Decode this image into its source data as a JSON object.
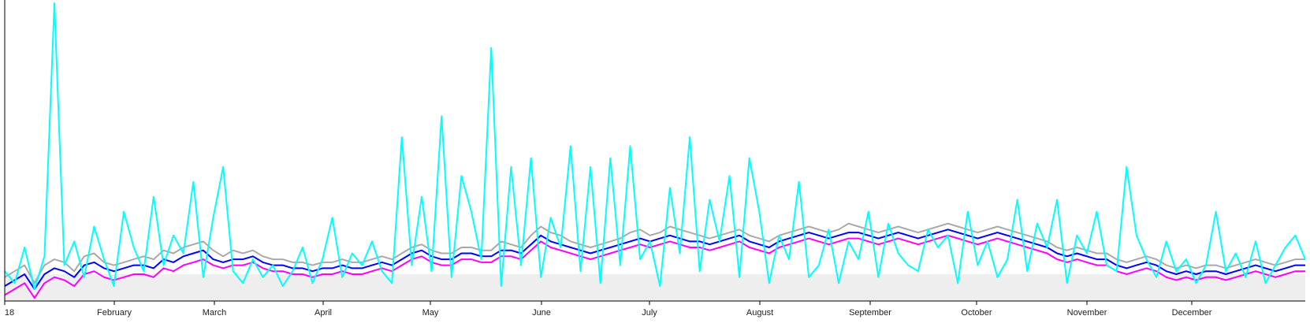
{
  "chart_data": {
    "type": "line",
    "title": "",
    "xlabel": "",
    "ylabel": "",
    "x_tick_labels": [
      "18",
      "February",
      "March",
      "April",
      "May",
      "June",
      "July",
      "August",
      "September",
      "October",
      "November",
      "December"
    ],
    "ylim": [
      0,
      100
    ],
    "grid": false,
    "legend": "none",
    "band": {
      "from": 0,
      "to": 9,
      "color": "#eeeeee"
    },
    "series": [
      {
        "color": "#a9a9a9",
        "values": [
          8,
          10,
          12,
          6,
          12,
          14,
          13,
          10,
          15,
          16,
          13,
          12,
          13,
          14,
          15,
          14,
          17,
          16,
          18,
          19,
          20,
          17,
          15,
          17,
          16,
          17,
          15,
          14,
          14,
          13,
          13,
          12,
          13,
          13,
          14,
          13,
          13,
          14,
          15,
          14,
          16,
          18,
          19,
          17,
          16,
          16,
          18,
          18,
          17,
          17,
          20,
          19,
          18,
          22,
          25,
          23,
          22,
          20,
          19,
          18,
          19,
          20,
          21,
          23,
          24,
          22,
          23,
          25,
          24,
          23,
          22,
          21,
          22,
          23,
          24,
          22,
          21,
          20,
          22,
          23,
          24,
          25,
          24,
          23,
          24,
          26,
          25,
          24,
          23,
          24,
          25,
          24,
          23,
          24,
          25,
          26,
          25,
          24,
          23,
          24,
          25,
          24,
          23,
          22,
          21,
          20,
          18,
          17,
          18,
          17,
          16,
          16,
          14,
          13,
          14,
          15,
          14,
          12,
          11,
          12,
          11,
          12,
          12,
          11,
          12,
          13,
          14,
          13,
          12,
          13,
          14,
          14
        ]
      },
      {
        "color": "#0000ff",
        "values": [
          5,
          7,
          9,
          4,
          9,
          11,
          10,
          8,
          12,
          13,
          11,
          10,
          11,
          12,
          12,
          11,
          14,
          13,
          15,
          16,
          17,
          14,
          13,
          14,
          14,
          15,
          13,
          12,
          12,
          11,
          11,
          10,
          11,
          11,
          12,
          11,
          11,
          12,
          13,
          12,
          14,
          16,
          17,
          15,
          14,
          14,
          16,
          16,
          15,
          15,
          17,
          17,
          16,
          19,
          22,
          20,
          19,
          18,
          17,
          16,
          17,
          18,
          19,
          20,
          21,
          20,
          21,
          22,
          21,
          20,
          20,
          19,
          20,
          21,
          22,
          20,
          19,
          18,
          20,
          21,
          22,
          23,
          22,
          21,
          22,
          23,
          23,
          22,
          21,
          22,
          23,
          22,
          21,
          22,
          23,
          24,
          23,
          22,
          21,
          22,
          23,
          22,
          21,
          20,
          19,
          18,
          16,
          15,
          16,
          15,
          14,
          14,
          12,
          11,
          12,
          13,
          12,
          10,
          9,
          10,
          9,
          10,
          10,
          9,
          10,
          11,
          12,
          11,
          10,
          11,
          12,
          12
        ]
      },
      {
        "color": "#ff00ff",
        "values": [
          2,
          4,
          6,
          1,
          6,
          8,
          7,
          5,
          9,
          10,
          8,
          7,
          8,
          9,
          9,
          8,
          11,
          10,
          12,
          13,
          14,
          12,
          11,
          12,
          12,
          13,
          11,
          10,
          10,
          9,
          9,
          8,
          9,
          9,
          10,
          9,
          9,
          10,
          11,
          10,
          12,
          14,
          15,
          13,
          12,
          12,
          14,
          14,
          13,
          13,
          15,
          15,
          14,
          17,
          20,
          18,
          17,
          16,
          15,
          14,
          15,
          16,
          17,
          18,
          19,
          18,
          19,
          20,
          19,
          18,
          18,
          17,
          18,
          19,
          20,
          18,
          17,
          16,
          18,
          19,
          20,
          21,
          20,
          19,
          20,
          21,
          21,
          20,
          19,
          20,
          21,
          20,
          19,
          20,
          21,
          22,
          21,
          20,
          19,
          20,
          21,
          20,
          19,
          18,
          17,
          16,
          14,
          13,
          14,
          13,
          12,
          12,
          10,
          9,
          10,
          11,
          10,
          8,
          7,
          8,
          7,
          8,
          8,
          7,
          8,
          9,
          10,
          9,
          8,
          9,
          10,
          10
        ]
      },
      {
        "color": "#00ffff",
        "values": [
          10,
          6,
          18,
          4,
          15,
          100,
          12,
          20,
          8,
          25,
          14,
          5,
          30,
          18,
          10,
          35,
          12,
          22,
          16,
          40,
          8,
          28,
          45,
          10,
          6,
          14,
          8,
          12,
          5,
          10,
          18,
          6,
          14,
          28,
          8,
          16,
          12,
          20,
          10,
          6,
          55,
          12,
          35,
          10,
          62,
          8,
          42,
          30,
          14,
          85,
          5,
          45,
          12,
          48,
          8,
          28,
          18,
          52,
          10,
          45,
          6,
          48,
          12,
          52,
          14,
          20,
          5,
          38,
          16,
          55,
          10,
          34,
          20,
          42,
          8,
          48,
          30,
          6,
          22,
          14,
          40,
          8,
          12,
          24,
          6,
          20,
          14,
          30,
          8,
          26,
          16,
          12,
          10,
          24,
          18,
          22,
          6,
          30,
          12,
          20,
          8,
          14,
          34,
          10,
          26,
          18,
          34,
          6,
          22,
          16,
          30,
          12,
          10,
          45,
          22,
          14,
          8,
          20,
          10,
          14,
          6,
          12,
          30,
          10,
          16,
          8,
          20,
          6,
          12,
          18,
          22,
          14
        ]
      }
    ]
  }
}
